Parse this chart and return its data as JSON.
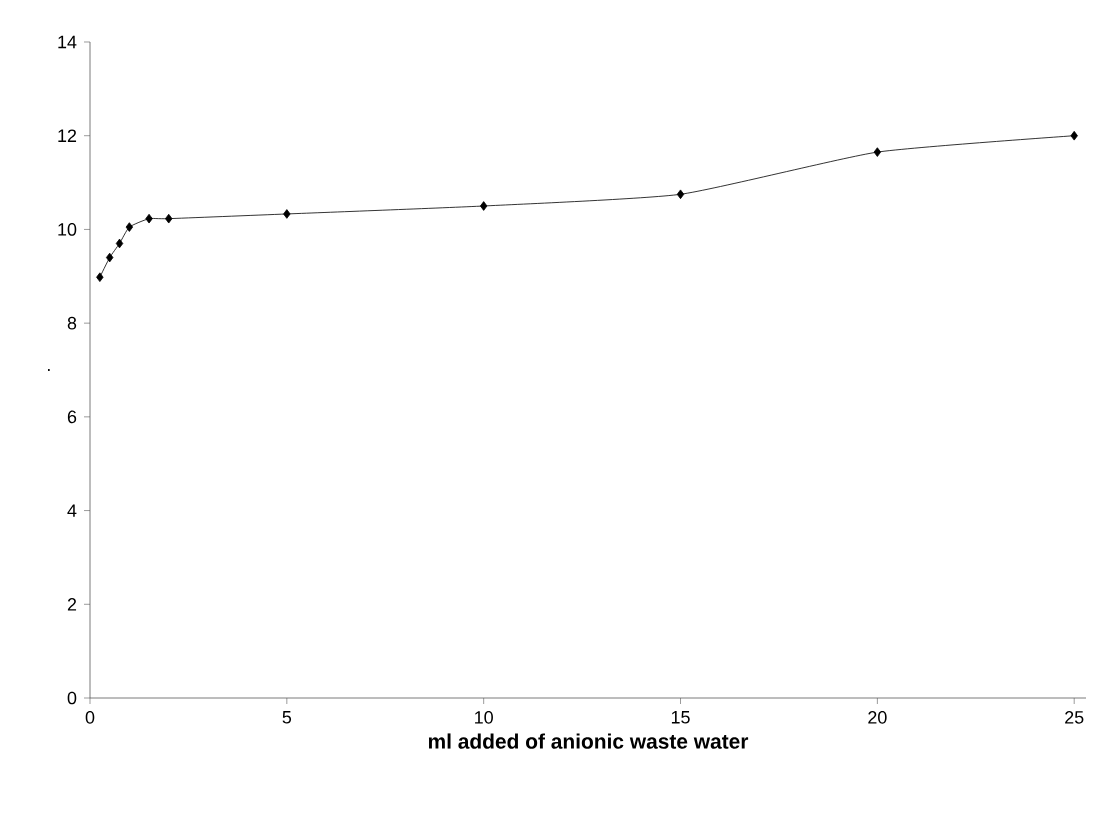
{
  "chart_data": {
    "type": "line",
    "xlabel": "ml added of anionic waste water",
    "ylabel": ".",
    "x": [
      0.25,
      0.5,
      0.75,
      1,
      1.5,
      2,
      5,
      10,
      15,
      20,
      25
    ],
    "series": [
      {
        "color": "#000000",
        "values": [
          8.98,
          9.4,
          9.7,
          10.05,
          10.23,
          10.23,
          10.33,
          10.5,
          10.75,
          11.65,
          12.0
        ]
      }
    ],
    "xlim": [
      0,
      25.3
    ],
    "ylim": [
      0,
      14
    ],
    "xticks": [
      0,
      5,
      10,
      15,
      20,
      25
    ],
    "yticks": [
      0,
      2,
      4,
      6,
      8,
      10,
      12,
      14
    ],
    "marker": "diamond",
    "line_style": "solid"
  }
}
